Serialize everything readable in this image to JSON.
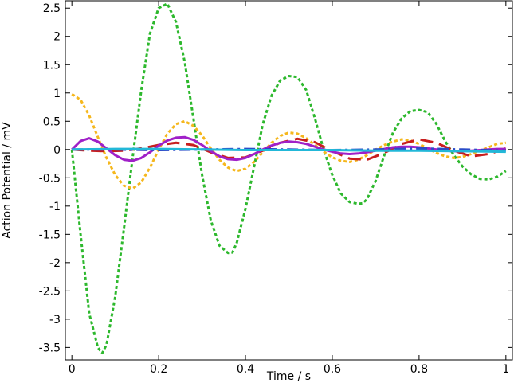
{
  "chart_data": {
    "type": "line",
    "title": "",
    "xlabel": "Time / s",
    "ylabel": "Action Potential / mV",
    "xlim": [
      -0.015,
      1.015
    ],
    "ylim": [
      -3.72,
      2.63
    ],
    "xticks": [
      0,
      0.2,
      0.4,
      0.6,
      0.8,
      1
    ],
    "xtick_labels": [
      "0",
      "0.2",
      "0.4",
      "0.6",
      "0.8",
      "1"
    ],
    "yticks": [
      2.5,
      2,
      1.5,
      1,
      0.5,
      0,
      -0.5,
      -1,
      -1.5,
      -2,
      -2.5,
      -3,
      -3.5
    ],
    "ytick_labels": [
      "2.5",
      "2",
      "1.5",
      "1",
      "0.5",
      "0",
      "-0.5",
      "-1",
      "-1.5",
      "-2",
      "-2.5",
      "-3",
      "-3.5"
    ],
    "grid": false,
    "legend": "none",
    "series": [
      {
        "color": "#2db82d",
        "style": "dotted",
        "x": [
          0,
          0.02,
          0.04,
          0.06,
          0.07,
          0.08,
          0.1,
          0.12,
          0.14,
          0.16,
          0.18,
          0.2,
          0.22,
          0.24,
          0.26,
          0.28,
          0.3,
          0.32,
          0.34,
          0.36,
          0.37,
          0.38,
          0.4,
          0.42,
          0.44,
          0.46,
          0.48,
          0.5,
          0.52,
          0.54,
          0.56,
          0.58,
          0.6,
          0.62,
          0.64,
          0.66,
          0.67,
          0.68,
          0.7,
          0.72,
          0.74,
          0.76,
          0.78,
          0.8,
          0.82,
          0.84,
          0.86,
          0.88,
          0.9,
          0.92,
          0.94,
          0.96,
          0.98,
          1
        ],
        "y": [
          0.0,
          -1.5,
          -2.9,
          -3.5,
          -3.6,
          -3.45,
          -2.6,
          -1.4,
          -0.15,
          1.05,
          2.05,
          2.5,
          2.58,
          2.25,
          1.55,
          0.55,
          -0.45,
          -1.25,
          -1.7,
          -1.83,
          -1.82,
          -1.65,
          -1.05,
          -0.3,
          0.45,
          0.95,
          1.22,
          1.3,
          1.28,
          1.05,
          0.55,
          0.0,
          -0.45,
          -0.78,
          -0.93,
          -0.96,
          -0.95,
          -0.88,
          -0.55,
          -0.1,
          0.3,
          0.55,
          0.68,
          0.7,
          0.66,
          0.45,
          0.15,
          -0.1,
          -0.3,
          -0.44,
          -0.52,
          -0.53,
          -0.48,
          -0.38
        ]
      },
      {
        "color": "#f5b71d",
        "style": "dotted",
        "x": [
          0,
          0.02,
          0.04,
          0.06,
          0.08,
          0.1,
          0.12,
          0.14,
          0.16,
          0.18,
          0.2,
          0.22,
          0.24,
          0.26,
          0.28,
          0.3,
          0.32,
          0.34,
          0.36,
          0.38,
          0.4,
          0.42,
          0.44,
          0.46,
          0.48,
          0.5,
          0.52,
          0.54,
          0.56,
          0.58,
          0.6,
          0.62,
          0.64,
          0.66,
          0.68,
          0.7,
          0.72,
          0.74,
          0.76,
          0.78,
          0.8,
          0.82,
          0.84,
          0.86,
          0.88,
          0.9,
          0.92,
          0.94,
          0.96,
          0.98,
          1
        ],
        "y": [
          0.98,
          0.88,
          0.6,
          0.22,
          -0.15,
          -0.45,
          -0.64,
          -0.69,
          -0.58,
          -0.32,
          0.0,
          0.28,
          0.45,
          0.5,
          0.42,
          0.25,
          0.02,
          -0.18,
          -0.32,
          -0.38,
          -0.34,
          -0.22,
          -0.05,
          0.12,
          0.24,
          0.3,
          0.28,
          0.2,
          0.08,
          -0.04,
          -0.14,
          -0.2,
          -0.22,
          -0.18,
          -0.1,
          0.0,
          0.08,
          0.14,
          0.18,
          0.16,
          0.1,
          0.02,
          -0.06,
          -0.12,
          -0.15,
          -0.13,
          -0.08,
          -0.02,
          0.04,
          0.1,
          0.12
        ]
      },
      {
        "color": "#c81e1e",
        "style": "dashed",
        "x": [
          0,
          0.04,
          0.08,
          0.12,
          0.16,
          0.2,
          0.24,
          0.28,
          0.32,
          0.36,
          0.4,
          0.44,
          0.48,
          0.52,
          0.56,
          0.6,
          0.64,
          0.68,
          0.72,
          0.76,
          0.8,
          0.84,
          0.88,
          0.92,
          0.96,
          1
        ],
        "y": [
          0.0,
          -0.02,
          -0.03,
          -0.02,
          0.02,
          0.08,
          0.12,
          0.08,
          -0.05,
          -0.15,
          -0.14,
          -0.02,
          0.12,
          0.19,
          0.13,
          -0.03,
          -0.16,
          -0.18,
          -0.06,
          0.1,
          0.18,
          0.12,
          -0.02,
          -0.12,
          -0.08,
          0.02
        ]
      },
      {
        "color": "#a020c8",
        "style": "solid",
        "x": [
          0,
          0.02,
          0.04,
          0.06,
          0.08,
          0.1,
          0.12,
          0.14,
          0.16,
          0.18,
          0.2,
          0.22,
          0.24,
          0.26,
          0.28,
          0.3,
          0.32,
          0.34,
          0.36,
          0.38,
          0.4,
          0.42,
          0.44,
          0.46,
          0.48,
          0.5,
          0.52,
          0.54,
          0.56,
          0.58,
          0.6,
          0.62,
          0.64,
          0.66,
          0.68,
          0.7,
          0.72,
          0.74,
          0.76,
          0.78,
          0.8,
          0.82,
          0.84,
          0.86,
          0.88,
          0.9,
          0.92,
          0.94,
          0.96,
          0.98,
          1
        ],
        "y": [
          0.0,
          0.15,
          0.2,
          0.14,
          0.02,
          -0.1,
          -0.18,
          -0.2,
          -0.15,
          -0.05,
          0.07,
          0.16,
          0.21,
          0.22,
          0.17,
          0.08,
          -0.03,
          -0.12,
          -0.17,
          -0.18,
          -0.15,
          -0.08,
          0.0,
          0.07,
          0.12,
          0.14,
          0.13,
          0.1,
          0.05,
          0.0,
          -0.04,
          -0.07,
          -0.08,
          -0.07,
          -0.05,
          -0.02,
          0.01,
          0.04,
          0.05,
          0.05,
          0.04,
          0.02,
          0.0,
          -0.02,
          -0.03,
          -0.03,
          -0.02,
          -0.01,
          0.0,
          0.01,
          0.01
        ]
      },
      {
        "color": "#2a4cc8",
        "style": "dashdot",
        "x": [
          0,
          0.1,
          0.2,
          0.3,
          0.4,
          0.5,
          0.6,
          0.7,
          0.8,
          0.9,
          1
        ],
        "y": [
          0.0,
          0.0,
          -0.01,
          0.0,
          0.01,
          0.0,
          -0.01,
          0.0,
          0.02,
          0.0,
          -0.02
        ]
      },
      {
        "color": "#22b8d8",
        "style": "solid",
        "x": [
          0,
          0.1,
          0.2,
          0.3,
          0.4,
          0.5,
          0.6,
          0.7,
          0.8,
          0.9,
          1
        ],
        "y": [
          0.0,
          0.01,
          0.01,
          0.0,
          -0.01,
          -0.01,
          -0.01,
          -0.02,
          -0.02,
          -0.03,
          -0.04
        ]
      }
    ]
  }
}
